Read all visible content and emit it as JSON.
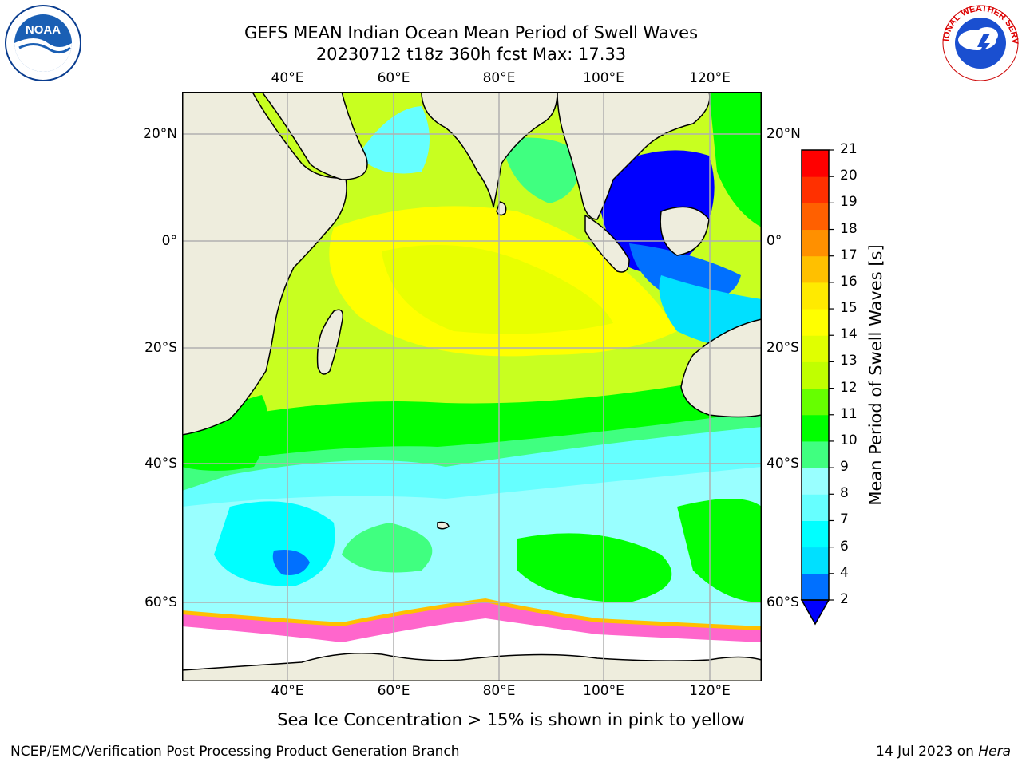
{
  "title": {
    "line1": "GEFS MEAN Indian Ocean Mean Period of Swell Waves",
    "line2": "20230712 t18z 360h fcst   Max: 17.33"
  },
  "map": {
    "lon_labels_top": [
      "40°E",
      "60°E",
      "80°E",
      "100°E",
      "120°E"
    ],
    "lon_labels_bottom": [
      "40°E",
      "60°E",
      "80°E",
      "100°E",
      "120°E"
    ],
    "lat_labels_left": [
      "20°N",
      "0°",
      "20°S",
      "40°S",
      "60°S"
    ],
    "lat_labels_right": [
      "20°N",
      "0°",
      "20°S",
      "40°S",
      "60°S"
    ],
    "land_color": "#eeeddd",
    "sea_ice_color": "#ff66cc"
  },
  "colorbar": {
    "title": "Mean Period of Swell Waves [s]",
    "ticks": [
      "2",
      "4",
      "6",
      "7",
      "8",
      "9",
      "10",
      "11",
      "12",
      "13",
      "14",
      "15",
      "16",
      "17",
      "18",
      "19",
      "20",
      "21"
    ],
    "colors": [
      "#0000ff",
      "#0070ff",
      "#00e0ff",
      "#00ffff",
      "#66ffff",
      "#99ffff",
      "#40ff80",
      "#00ff00",
      "#66ff00",
      "#c0ff00",
      "#e0ff00",
      "#ffff00",
      "#ffea00",
      "#ffc000",
      "#ff9000",
      "#ff6000",
      "#ff3000",
      "#ff0000"
    ],
    "extend_color": "#0000ff"
  },
  "caption": "Sea Ice Concentration > 15% is shown in pink to yellow",
  "footer": {
    "left": "NCEP/EMC/Verification Post Processing Product Generation Branch",
    "right_date": "14 Jul 2023 on ",
    "right_host": "Hera"
  },
  "logos": {
    "noaa": "NOAA",
    "nws_ring": "NATIONAL WEATHER SERVICE"
  }
}
